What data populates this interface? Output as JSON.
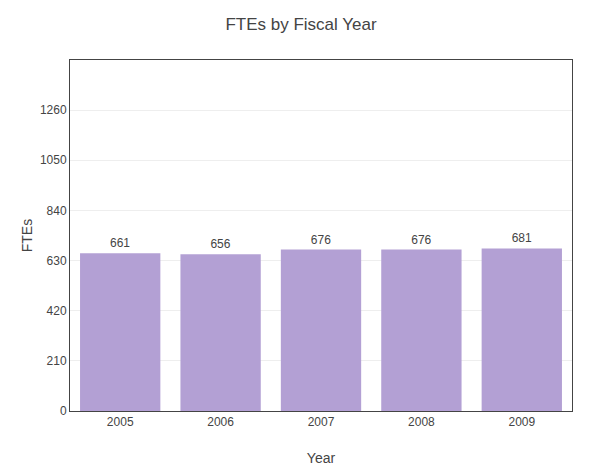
{
  "chart_data": {
    "type": "bar",
    "title": "FTEs by Fiscal Year",
    "xlabel": "Year",
    "ylabel": "FTEs",
    "categories": [
      "2005",
      "2006",
      "2007",
      "2008",
      "2009"
    ],
    "values": [
      661,
      656,
      676,
      676,
      681
    ],
    "color": "#b3a0d4",
    "ylim": [
      0,
      1470
    ],
    "yticks": [
      0,
      210,
      420,
      630,
      840,
      1050,
      1260
    ],
    "grid": true,
    "data_labels": true
  }
}
